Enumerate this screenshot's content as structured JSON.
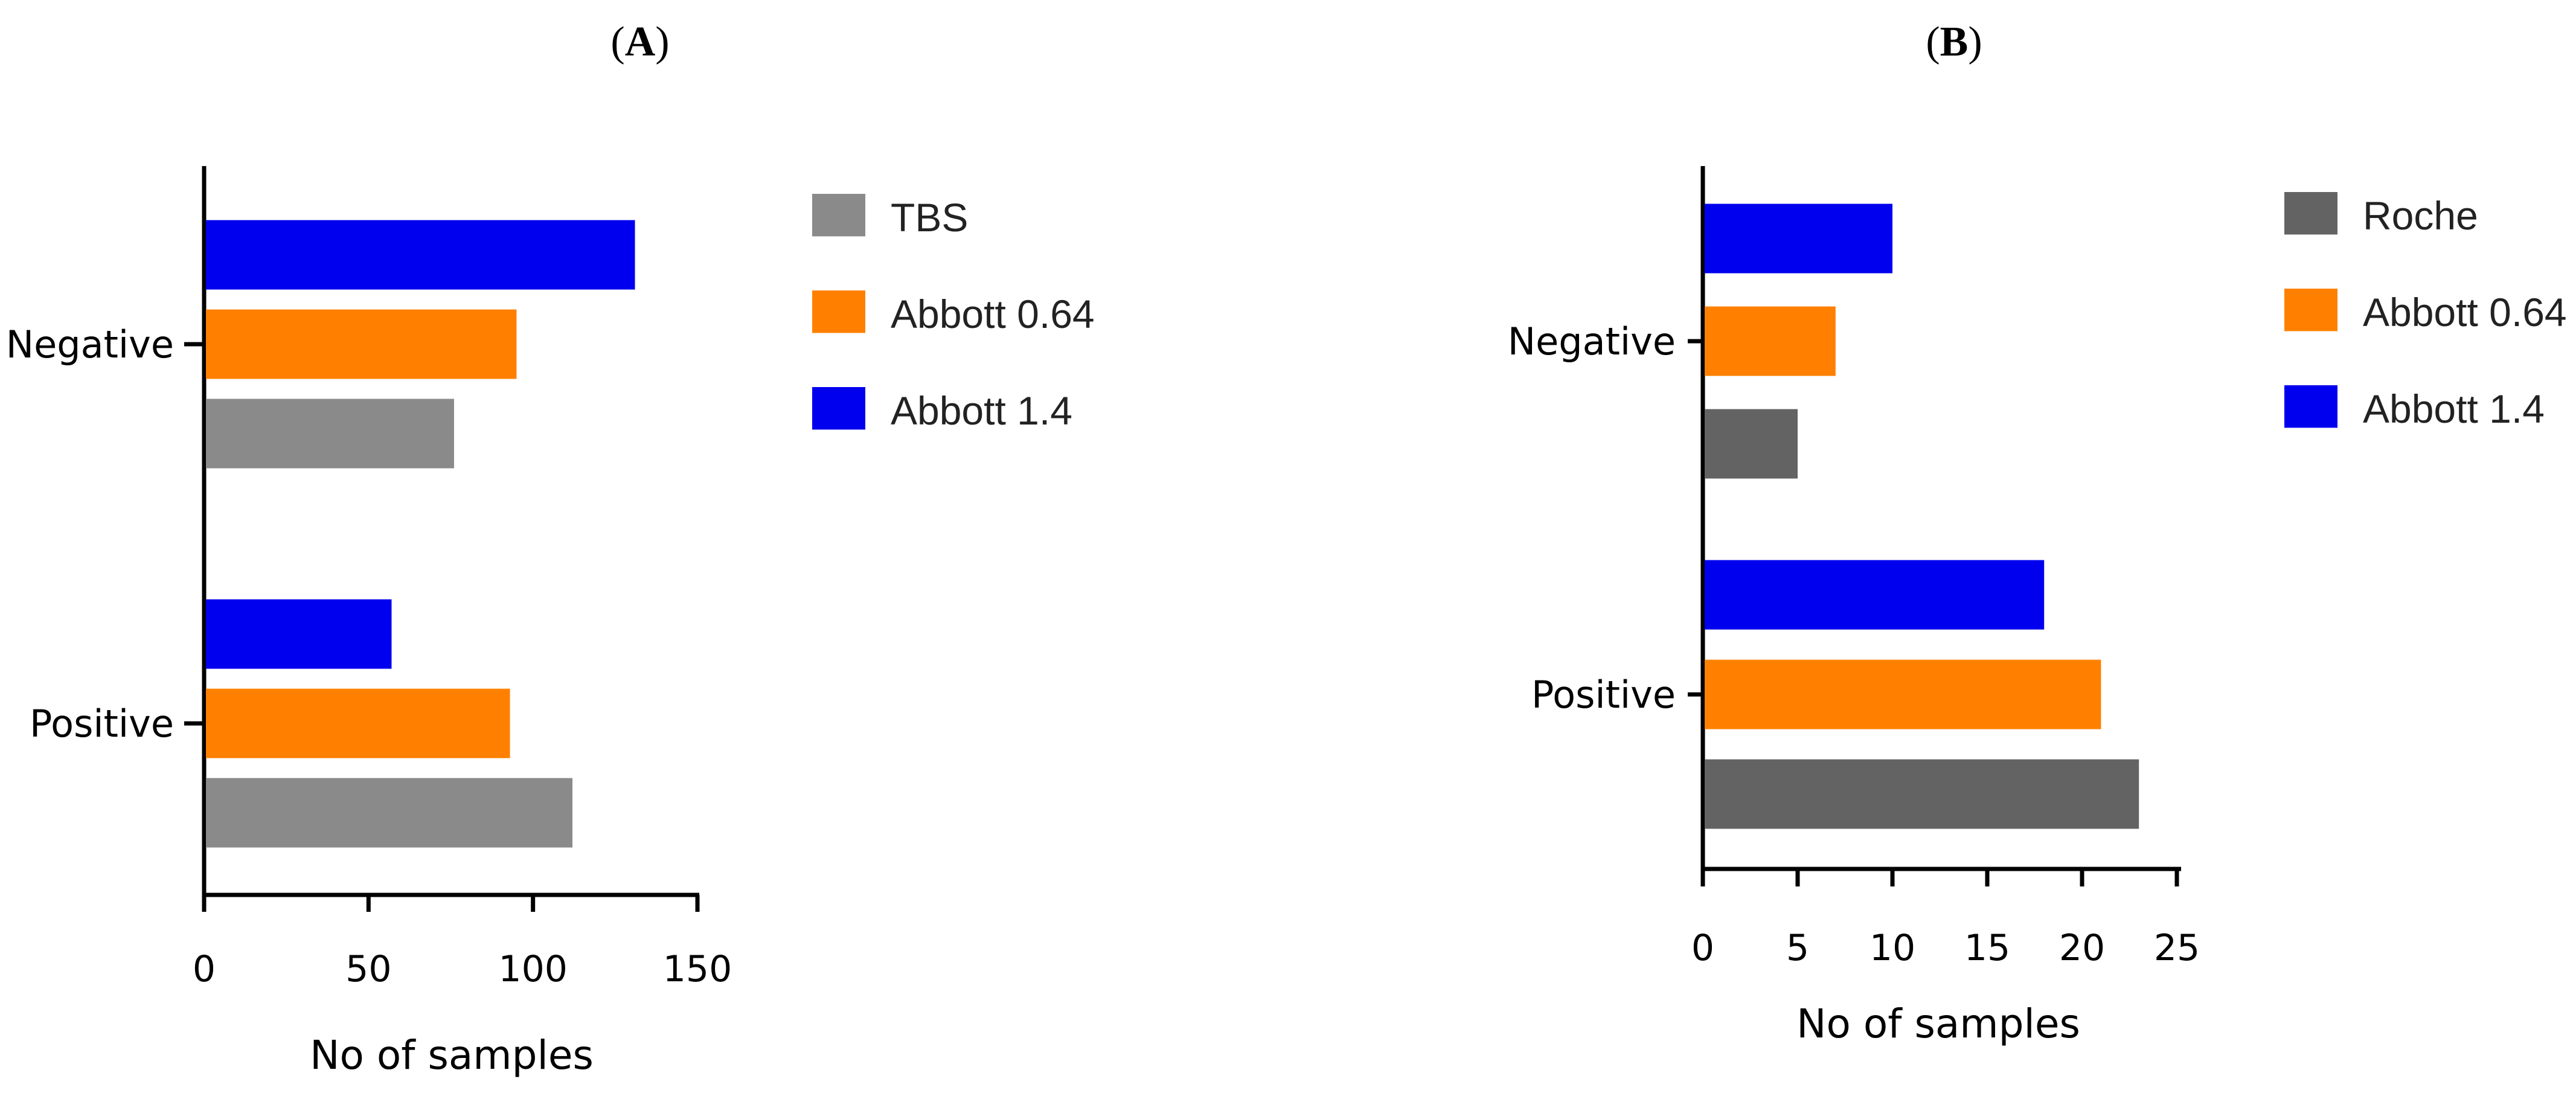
{
  "chart_data": [
    {
      "type": "bar",
      "orientation": "horizontal",
      "panel_label": "(A)",
      "panel_letter": "A",
      "title": "",
      "categories": [
        "Negative",
        "Positive"
      ],
      "series": [
        {
          "name": "TBS",
          "color": "#8a8a8a",
          "values": [
            76,
            112
          ]
        },
        {
          "name": "Abbott 0.64",
          "color": "#ff8000",
          "values": [
            95,
            93
          ]
        },
        {
          "name": "Abbott 1.4",
          "color": "#0000ee",
          "values": [
            131,
            57
          ]
        }
      ],
      "legend": [
        "TBS",
        "Abbott 0.64",
        "Abbott 1.4"
      ],
      "xlabel": "No of samples",
      "ylabel": "",
      "xlim": [
        0,
        150
      ],
      "xticks": [
        0,
        50,
        100,
        150
      ],
      "grid": false,
      "legend_position": "right"
    },
    {
      "type": "bar",
      "orientation": "horizontal",
      "panel_label": "(B)",
      "panel_letter": "B",
      "title": "",
      "categories": [
        "Negative",
        "Positive"
      ],
      "series": [
        {
          "name": "Roche",
          "color": "#636363",
          "values": [
            5,
            23
          ]
        },
        {
          "name": "Abbott 0.64",
          "color": "#ff8000",
          "values": [
            7,
            21
          ]
        },
        {
          "name": "Abbott 1.4",
          "color": "#0000ee",
          "values": [
            10,
            18
          ]
        }
      ],
      "legend": [
        "Roche",
        "Abbott 0.64",
        "Abbott 1.4"
      ],
      "xlabel": "No of samples",
      "ylabel": "",
      "xlim": [
        0,
        25
      ],
      "xticks": [
        0,
        5,
        10,
        15,
        20,
        25
      ],
      "grid": false,
      "legend_position": "right"
    }
  ]
}
